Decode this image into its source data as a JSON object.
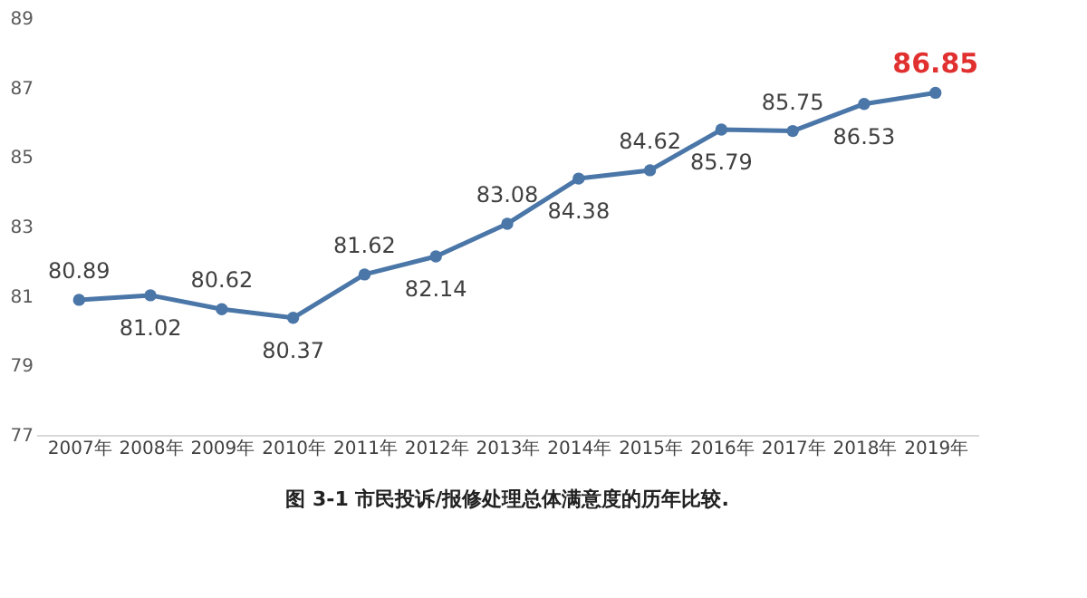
{
  "chart_data": {
    "type": "line",
    "title": "图 3-1 市民投诉/报修处理总体满意度的历年比较.",
    "categories": [
      "2007年",
      "2008年",
      "2009年",
      "2010年",
      "2011年",
      "2012年",
      "2013年",
      "2014年",
      "2015年",
      "2016年",
      "2017年",
      "2018年",
      "2019年"
    ],
    "series": [
      {
        "color": "#4a76a8",
        "values": [
          80.89,
          81.02,
          80.62,
          80.37,
          81.62,
          82.14,
          83.08,
          84.38,
          84.62,
          85.79,
          85.75,
          86.53,
          86.85
        ]
      }
    ],
    "ylim": [
      77,
      89
    ],
    "yticks": [
      77,
      79,
      81,
      83,
      85,
      87,
      89
    ],
    "grid": false,
    "marker": "circle",
    "line_style": "solid",
    "data_labels": true
  }
}
